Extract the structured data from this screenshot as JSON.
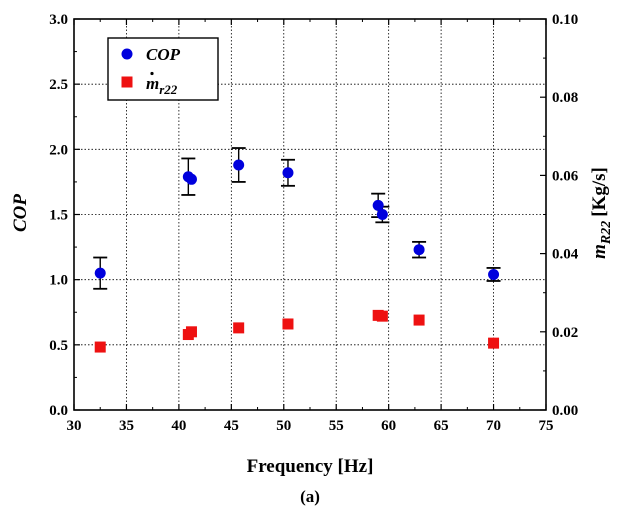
{
  "chart_data": {
    "type": "scatter",
    "xlabel": "Frequency [Hz]",
    "ylabel_left": "COP",
    "ylabel_right_main": "m",
    "ylabel_right_sub": "R22",
    "ylabel_right_unit": "[Kg/s]",
    "caption": "(a)",
    "xlim": [
      30,
      75
    ],
    "xticks": [
      30,
      35,
      40,
      45,
      50,
      55,
      60,
      65,
      70,
      75
    ],
    "ylim_left": [
      0.0,
      3.0
    ],
    "yticks_left": [
      "0.0",
      "0.5",
      "1.0",
      "1.5",
      "2.0",
      "2.5",
      "3.0"
    ],
    "ylim_right": [
      0.0,
      0.1
    ],
    "yticks_right": [
      "0.00",
      "0.02",
      "0.04",
      "0.06",
      "0.08",
      "0.10"
    ],
    "grid": true,
    "legend": {
      "position": "top-left",
      "entries": [
        {
          "main": "COP",
          "sub": "",
          "color": "#0000dd",
          "marker": "circle"
        },
        {
          "main": "m",
          "sub": "r22",
          "color": "#ee1111",
          "marker": "square"
        }
      ]
    },
    "series": [
      {
        "name": "COP",
        "axis": "left",
        "color": "#0000dd",
        "marker": "circle",
        "points": [
          {
            "x": 32.5,
            "y": 1.05,
            "err": 0.12
          },
          {
            "x": 40.9,
            "y": 1.79,
            "err": 0.14
          },
          {
            "x": 41.2,
            "y": 1.77,
            "err": 0
          },
          {
            "x": 45.7,
            "y": 1.88,
            "err": 0.13
          },
          {
            "x": 50.4,
            "y": 1.82,
            "err": 0.1
          },
          {
            "x": 59.0,
            "y": 1.57,
            "err": 0.09
          },
          {
            "x": 59.4,
            "y": 1.5,
            "err": 0.06
          },
          {
            "x": 62.9,
            "y": 1.23,
            "err": 0.06
          },
          {
            "x": 70.0,
            "y": 1.04,
            "err": 0.05
          }
        ]
      },
      {
        "name": "m r22",
        "axis": "right",
        "color": "#ee1111",
        "marker": "square",
        "points": [
          {
            "x": 32.5,
            "y": 0.0161
          },
          {
            "x": 40.9,
            "y": 0.0193
          },
          {
            "x": 41.2,
            "y": 0.02
          },
          {
            "x": 45.7,
            "y": 0.021
          },
          {
            "x": 50.4,
            "y": 0.022
          },
          {
            "x": 59.0,
            "y": 0.0242
          },
          {
            "x": 59.4,
            "y": 0.024
          },
          {
            "x": 62.9,
            "y": 0.023
          },
          {
            "x": 70.0,
            "y": 0.0171
          }
        ]
      }
    ]
  }
}
